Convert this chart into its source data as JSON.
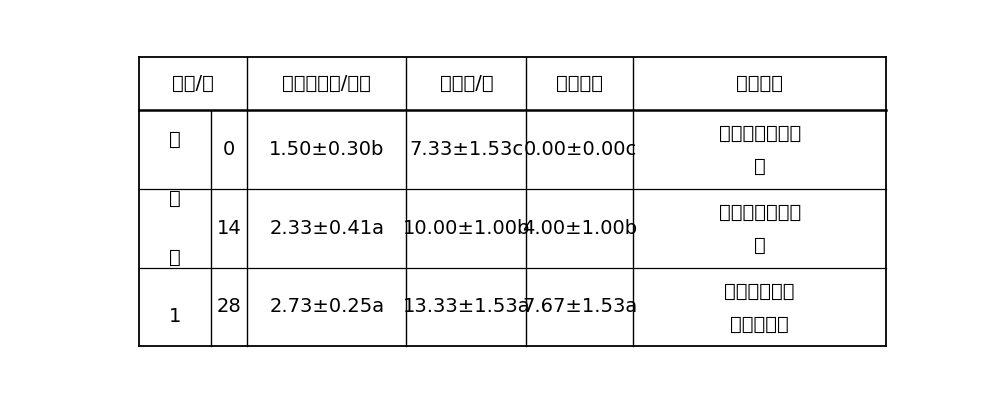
{
  "header_cols": [
    "时期/天",
    "丛生芽高度/厘米",
    "分枝数/个",
    "增殖倍数",
    "生长情况"
  ],
  "vert_label": [
    "实",
    "施",
    "例",
    "1"
  ],
  "rows": [
    {
      "day": "0",
      "height": "1.50±0.30b",
      "branches": "7.33±1.53c",
      "multiplication": "0.00±0.00c",
      "growth_line1": "茎较粗壮，芽深",
      "growth_line2": "绿"
    },
    {
      "day": "14",
      "height": "2.33±0.41a",
      "branches": "10.00±1.00b",
      "multiplication": "4.00±1.00b",
      "growth_line1": "增殖快，分枝较",
      "growth_line2": "多"
    },
    {
      "day": "28",
      "height": "2.73±0.25a",
      "branches": "13.33±1.53a",
      "multiplication": "7.67±1.53a",
      "growth_line1": "出芽快，分枝",
      "growth_line2": "多，苗深绿"
    }
  ],
  "background_color": "#ffffff",
  "text_color": "#000000",
  "font_size": 14,
  "header_font_size": 14
}
